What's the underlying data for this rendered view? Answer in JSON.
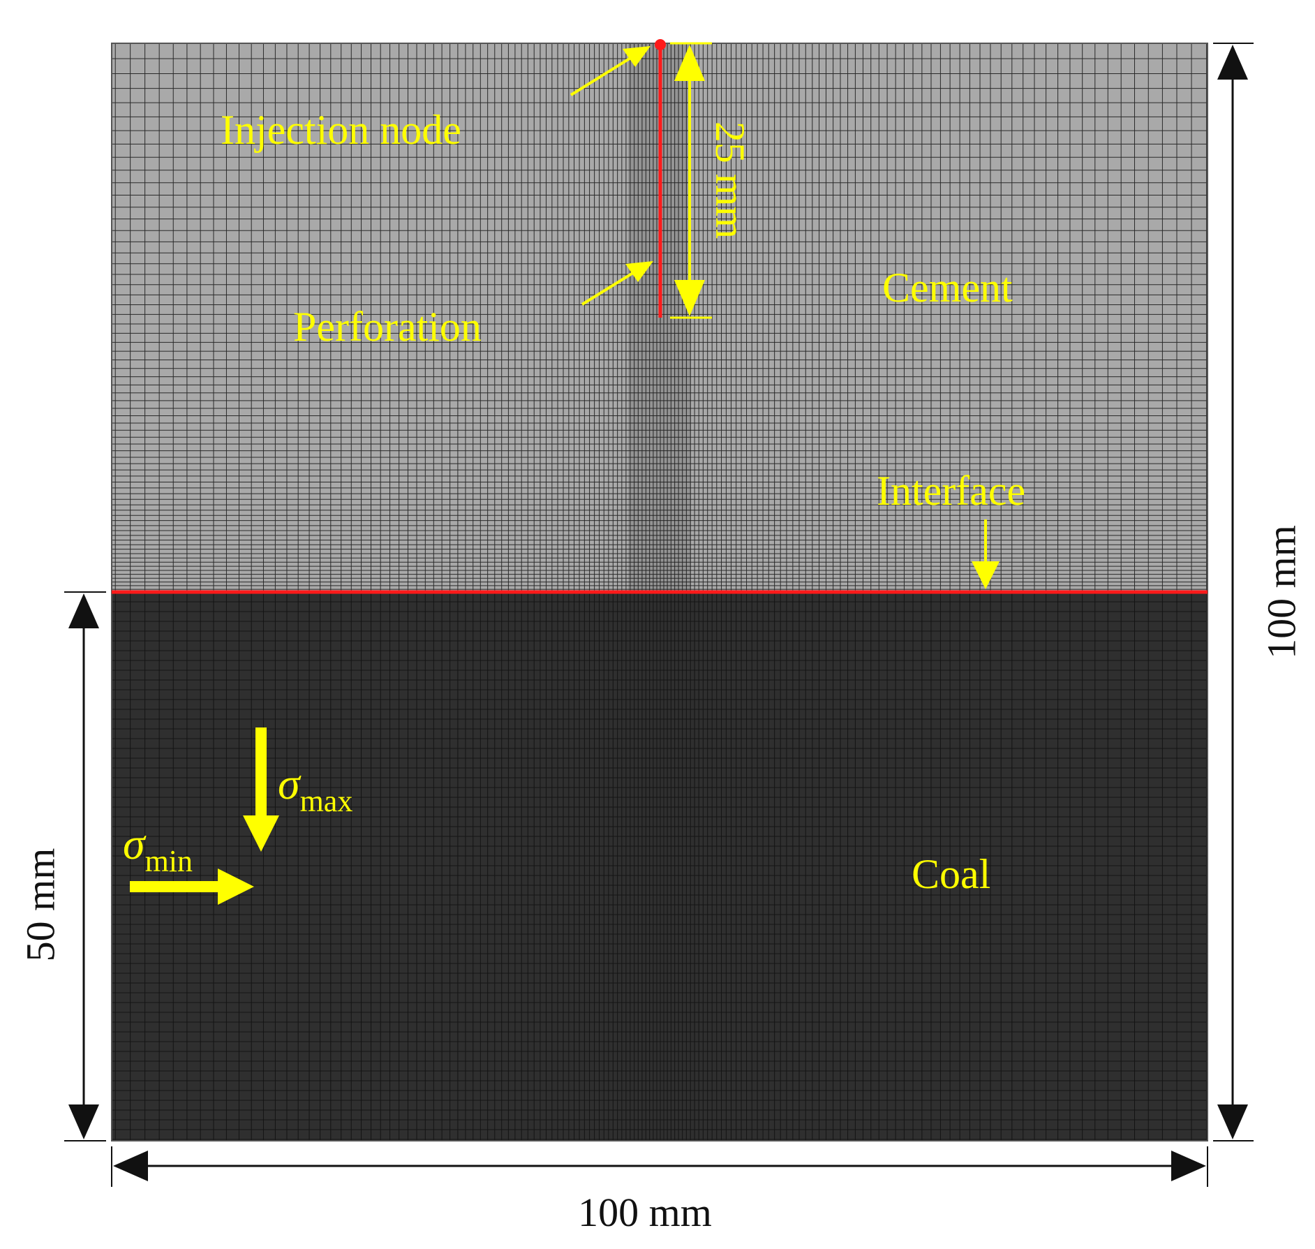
{
  "labels": {
    "injection_node": "Injection node",
    "perforation": "Perforation",
    "cement": "Cement",
    "interface": "Interface",
    "coal": "Coal",
    "sigma_max_symbol": "σ",
    "sigma_max_sub": "max",
    "sigma_min_symbol": "σ",
    "sigma_min_sub": "min"
  },
  "dimensions": {
    "perforation_length": "25 mm",
    "total_height": "100 mm",
    "coal_height": "50 mm",
    "width": "100 mm"
  },
  "colors": {
    "cement_fill": "#a9a9a9",
    "cement_grid": "#2a2a2a",
    "coal_fill": "#2f2f2f",
    "coal_grid": "#141414",
    "interface": "#ff1a1a",
    "perforation": "#ff1a1a",
    "annotation": "#ffff00",
    "dimension": "#111111"
  }
}
